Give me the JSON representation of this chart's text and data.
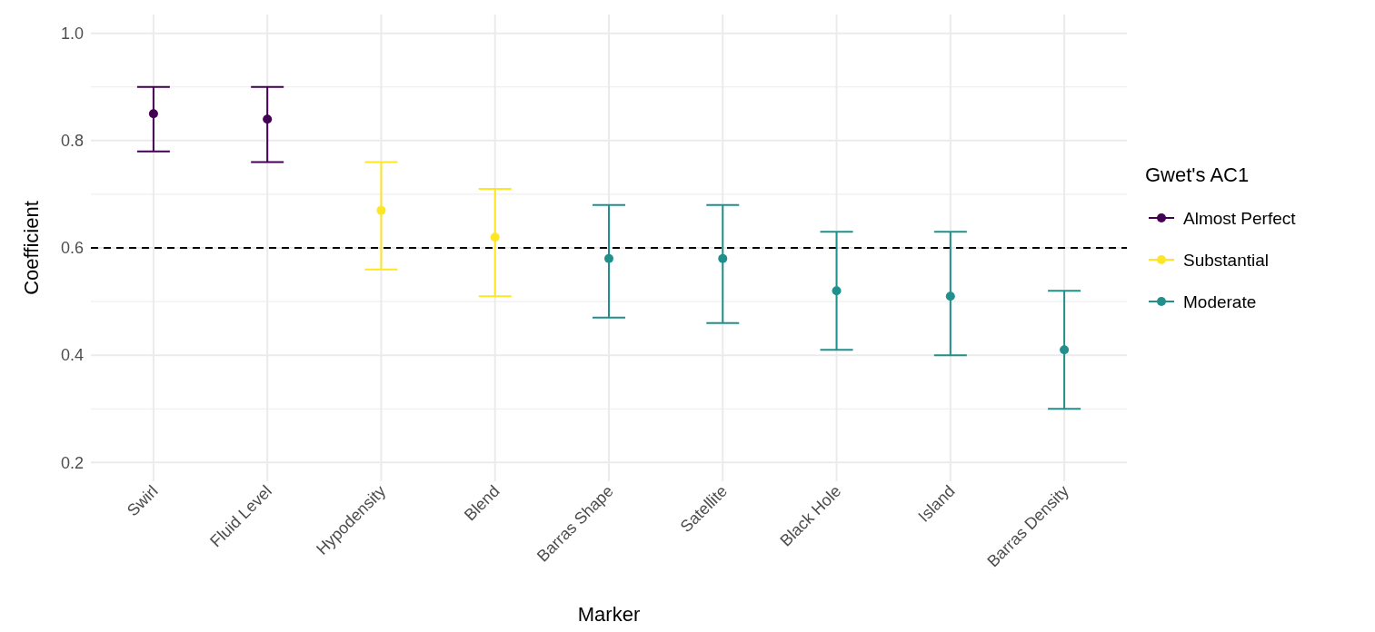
{
  "chart_data": {
    "type": "scatter",
    "xlabel": "Marker",
    "ylabel": "Coefficient",
    "legend_title": "Gwet's AC1",
    "categories": [
      "Swirl",
      "Fluid Level",
      "Hypodensity",
      "Blend",
      "Barras Shape",
      "Satellite",
      "Black Hole",
      "Island",
      "Barras Density"
    ],
    "series": [
      {
        "name": "Almost Perfect",
        "color": "#440154",
        "values": [
          0.85,
          0.84,
          null,
          null,
          null,
          null,
          null,
          null,
          null
        ],
        "errors": [
          [
            0.78,
            0.9
          ],
          [
            0.76,
            0.9
          ],
          null,
          null,
          null,
          null,
          null,
          null,
          null
        ]
      },
      {
        "name": "Substantial",
        "color": "#fde725",
        "values": [
          null,
          null,
          0.67,
          0.62,
          null,
          null,
          null,
          null,
          null
        ],
        "errors": [
          null,
          null,
          [
            0.56,
            0.76
          ],
          [
            0.51,
            0.71
          ],
          null,
          null,
          null,
          null,
          null
        ]
      },
      {
        "name": "Moderate",
        "color": "#21908c",
        "values": [
          null,
          null,
          null,
          null,
          0.58,
          0.58,
          0.52,
          0.51,
          0.41
        ],
        "errors": [
          null,
          null,
          null,
          null,
          [
            0.47,
            0.68
          ],
          [
            0.46,
            0.68
          ],
          [
            0.41,
            0.63
          ],
          [
            0.4,
            0.63
          ],
          [
            0.3,
            0.52
          ]
        ]
      }
    ],
    "ylim": [
      0.165,
      1.035
    ],
    "yticks": [
      0.2,
      0.4,
      0.6,
      0.8,
      {
        "value": 1,
        "label": "1.0"
      }
    ],
    "ref_lines": [
      {
        "axis": "y",
        "value": 0.6,
        "color": "#000000",
        "line_style": "dashed"
      }
    ],
    "grid": true,
    "legend": "right",
    "marker": "circle"
  }
}
